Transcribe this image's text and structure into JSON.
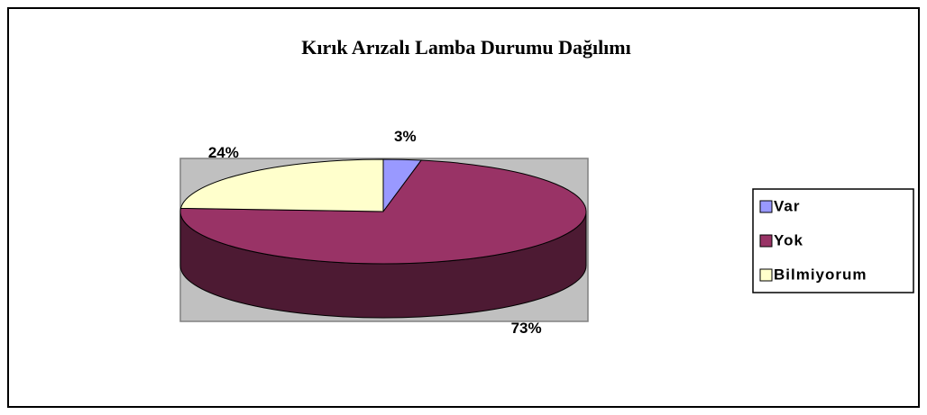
{
  "chart_data": {
    "type": "pie3d",
    "title": "Kırık Arızalı Lamba Durumu Dağılımı",
    "categories": [
      "Var",
      "Yok",
      "Bilmiyorum"
    ],
    "values": [
      3,
      73,
      24
    ],
    "value_labels": [
      "3%",
      "73%",
      "24%"
    ],
    "colors": [
      "#9999ff",
      "#993366",
      "#ffffcc"
    ],
    "legend": "right"
  }
}
